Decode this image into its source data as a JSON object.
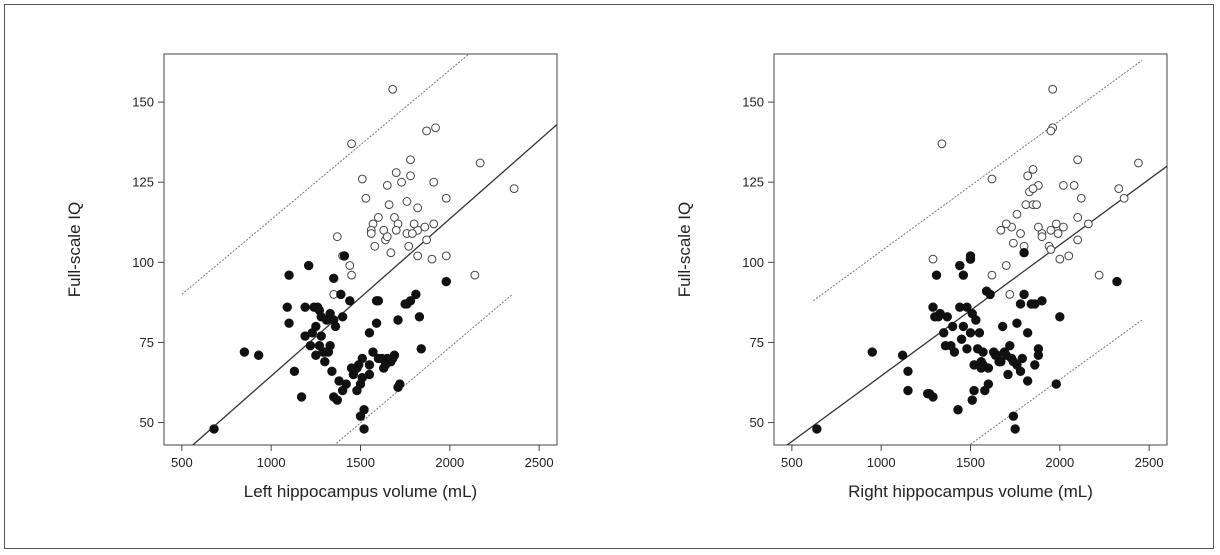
{
  "figure": {
    "colors": {
      "axis": "#444444",
      "regression": "#333333",
      "interval": "#777777",
      "filled": "#111111",
      "open_stroke": "#444444"
    }
  },
  "chart_data": [
    {
      "type": "scatter",
      "xlabel": "Left hippocampus volume (mL)",
      "ylabel": "Full-scale IQ",
      "xlim": [
        400,
        2600
      ],
      "ylim": [
        43,
        165
      ],
      "xticks": [
        500,
        1000,
        1500,
        2000,
        2500
      ],
      "yticks": [
        50,
        75,
        100,
        125,
        150
      ],
      "grid": false,
      "legend": "none",
      "regression_line": {
        "x": [
          500,
          2600
        ],
        "y": [
          40,
          143
        ]
      },
      "prediction_band": {
        "upper": {
          "x": [
            500,
            2150
          ],
          "y": [
            90,
            167
          ]
        },
        "lower": {
          "x": [
            1290,
            2350
          ],
          "y": [
            40,
            90
          ]
        }
      },
      "series": [
        {
          "marker": "open-circle",
          "x": [
            1680,
            1450,
            1870,
            1920,
            2170,
            2360,
            1510,
            1780,
            1700,
            1910,
            1780,
            1650,
            1730,
            1600,
            1660,
            1570,
            1690,
            1630,
            1640,
            1560,
            1650,
            1710,
            1760,
            1820,
            1770,
            1870,
            1910,
            1980,
            1760,
            1820,
            1860,
            1790,
            1800,
            1580,
            1400,
            1440,
            1820,
            1900,
            1980,
            1670,
            1350,
            2140,
            1450,
            1370,
            1530,
            1560,
            1700
          ],
          "y": [
            154,
            137,
            141,
            142,
            131,
            123,
            126,
            132,
            128,
            125,
            127,
            124,
            125,
            114,
            118,
            112,
            114,
            110,
            107,
            110,
            108,
            112,
            109,
            110,
            105,
            107,
            112,
            120,
            119,
            117,
            111,
            109,
            112,
            105,
            102,
            99,
            102,
            101,
            102,
            103,
            90,
            96,
            96,
            108,
            120,
            109,
            110
          ]
        },
        {
          "marker": "filled-circle",
          "x": [
            680,
            850,
            930,
            1100,
            1090,
            1100,
            1130,
            1170,
            1190,
            1210,
            1240,
            1260,
            1280,
            1300,
            1330,
            1350,
            1360,
            1390,
            1410,
            1440,
            1460,
            1480,
            1490,
            1510,
            1520,
            1550,
            1570,
            1590,
            1600,
            1630,
            1650,
            1680,
            1710,
            1760,
            1780,
            1810,
            1830,
            1840,
            1980,
            1370,
            1400,
            1250,
            1270,
            1300,
            1330,
            1190,
            1220,
            1250,
            1290,
            1320,
            1350,
            1380,
            1420,
            1450,
            1500,
            1520,
            1400,
            1480,
            1510,
            1550,
            1230,
            1280,
            1340,
            1590,
            1620,
            1650,
            1690,
            1720,
            1750,
            1500,
            1550,
            1600,
            1640,
            1670,
            1710,
            1310,
            1270,
            1350
          ],
          "y": [
            48,
            72,
            71,
            96,
            86,
            81,
            66,
            58,
            86,
            99,
            86,
            86,
            83,
            72,
            84,
            82,
            80,
            90,
            102,
            88,
            65,
            67,
            68,
            70,
            54,
            78,
            72,
            88,
            88,
            67,
            70,
            70,
            82,
            87,
            88,
            90,
            83,
            73,
            94,
            57,
            60,
            80,
            74,
            69,
            74,
            77,
            74,
            71,
            72,
            72,
            58,
            63,
            62,
            67,
            52,
            48,
            83,
            60,
            64,
            65,
            78,
            77,
            66,
            81,
            70,
            69,
            71,
            62,
            87,
            62,
            68,
            70,
            68,
            69,
            61,
            82,
            85,
            95
          ]
        }
      ]
    },
    {
      "type": "scatter",
      "xlabel": "Right hippocampus volume (mL)",
      "ylabel": "Full-scale IQ",
      "xlim": [
        400,
        2600
      ],
      "ylim": [
        43,
        165
      ],
      "xticks": [
        500,
        1000,
        1500,
        2000,
        2500
      ],
      "yticks": [
        50,
        75,
        100,
        125,
        150
      ],
      "grid": false,
      "legend": "none",
      "regression_line": {
        "x": [
          400,
          2600
        ],
        "y": [
          40,
          130
        ]
      },
      "prediction_band": {
        "upper": {
          "x": [
            620,
            2460
          ],
          "y": [
            88,
            163
          ]
        },
        "lower": {
          "x": [
            1420,
            2460
          ],
          "y": [
            40,
            82
          ]
        }
      },
      "series": [
        {
          "marker": "open-circle",
          "x": [
            1960,
            1340,
            1960,
            1950,
            2440,
            2360,
            2100,
            2020,
            1760,
            1730,
            1820,
            1850,
            1880,
            1830,
            1810,
            1850,
            1900,
            1950,
            1980,
            2020,
            2080,
            2120,
            2160,
            2100,
            1990,
            1940,
            1900,
            1880,
            1800,
            1780,
            1700,
            1670,
            1620,
            1740,
            1850,
            1870,
            1950,
            2000,
            2050,
            2100,
            1290,
            1620,
            1700,
            2220,
            1720,
            2330
          ],
          "y": [
            154,
            137,
            142,
            141,
            131,
            120,
            132,
            124,
            115,
            111,
            127,
            129,
            124,
            122,
            118,
            118,
            109,
            110,
            112,
            111,
            124,
            120,
            112,
            114,
            109,
            105,
            108,
            111,
            105,
            109,
            112,
            110,
            96,
            106,
            123,
            118,
            104,
            101,
            102,
            107,
            101,
            126,
            99,
            96,
            90,
            123
          ]
        },
        {
          "marker": "filled-circle",
          "x": [
            640,
            950,
            1120,
            1150,
            1150,
            1260,
            1290,
            1310,
            1320,
            1350,
            1390,
            1410,
            1440,
            1460,
            1480,
            1500,
            1510,
            1530,
            1550,
            1570,
            1590,
            1610,
            1630,
            1660,
            1680,
            1700,
            1730,
            1760,
            1780,
            1800,
            1820,
            1840,
            1860,
            1880,
            1900,
            1980,
            2000,
            1740,
            1750,
            1500,
            1520,
            1430,
            1560,
            1600,
            1270,
            1290,
            1370,
            1400,
            1440,
            1480,
            1520,
            1560,
            1580,
            1640,
            1690,
            1710,
            1760,
            1790,
            2320,
            1300,
            1330,
            1360,
            1450,
            1500,
            1540,
            1570,
            1600,
            1650,
            1670,
            1720,
            1740,
            1780,
            1820,
            1860,
            1880,
            1460,
            1510,
            1800
          ],
          "y": [
            48,
            72,
            71,
            66,
            60,
            59,
            86,
            96,
            83,
            78,
            74,
            72,
            86,
            80,
            86,
            101,
            84,
            82,
            78,
            72,
            91,
            90,
            72,
            69,
            80,
            71,
            70,
            68,
            87,
            90,
            78,
            87,
            87,
            73,
            88,
            62,
            83,
            52,
            48,
            102,
            60,
            54,
            67,
            67,
            59,
            58,
            83,
            80,
            99,
            73,
            68,
            69,
            60,
            71,
            72,
            65,
            81,
            70,
            94,
            83,
            84,
            74,
            76,
            78,
            73,
            68,
            62,
            71,
            69,
            74,
            69,
            66,
            63,
            68,
            71,
            96,
            57,
            103
          ]
        }
      ]
    }
  ]
}
